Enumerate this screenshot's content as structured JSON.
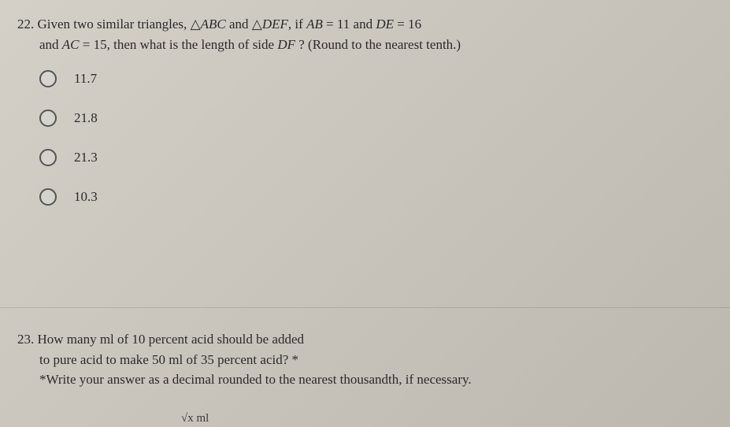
{
  "q22": {
    "number": "22.",
    "line1_prefix": "Given two similar triangles, ",
    "tri1": "△",
    "tri1_name": "ABC",
    "and1": " and ",
    "tri2": "△",
    "tri2_name": "DEF",
    "if_text": ", if ",
    "ab": "AB",
    "eq1": " = 11 and ",
    "de": "DE",
    "eq2": " = 16",
    "line2_prefix": "and ",
    "ac": "AC",
    "eq3": " = 15, then what is the length of side ",
    "df": "DF",
    "tail": " ? (Round to the nearest tenth.)",
    "options": [
      {
        "label": "11.7"
      },
      {
        "label": "21.8"
      },
      {
        "label": "21.3"
      },
      {
        "label": "10.3"
      }
    ]
  },
  "q23": {
    "number": "23.",
    "line1": "How many ml of 10 percent acid should be added",
    "line2": "to pure acid to make 50 ml of 35 percent acid? *",
    "line3": "*Write your answer as a decimal rounded to the nearest thousandth, if necessary.",
    "footer": "√x  ml"
  },
  "style": {
    "background": "#cac6be",
    "text_color": "#2a2a2a",
    "radio_border": "#555555",
    "font_family": "Georgia, Times New Roman, serif",
    "question_fontsize": 17,
    "option_fontsize": 17,
    "radio_size": 22
  }
}
